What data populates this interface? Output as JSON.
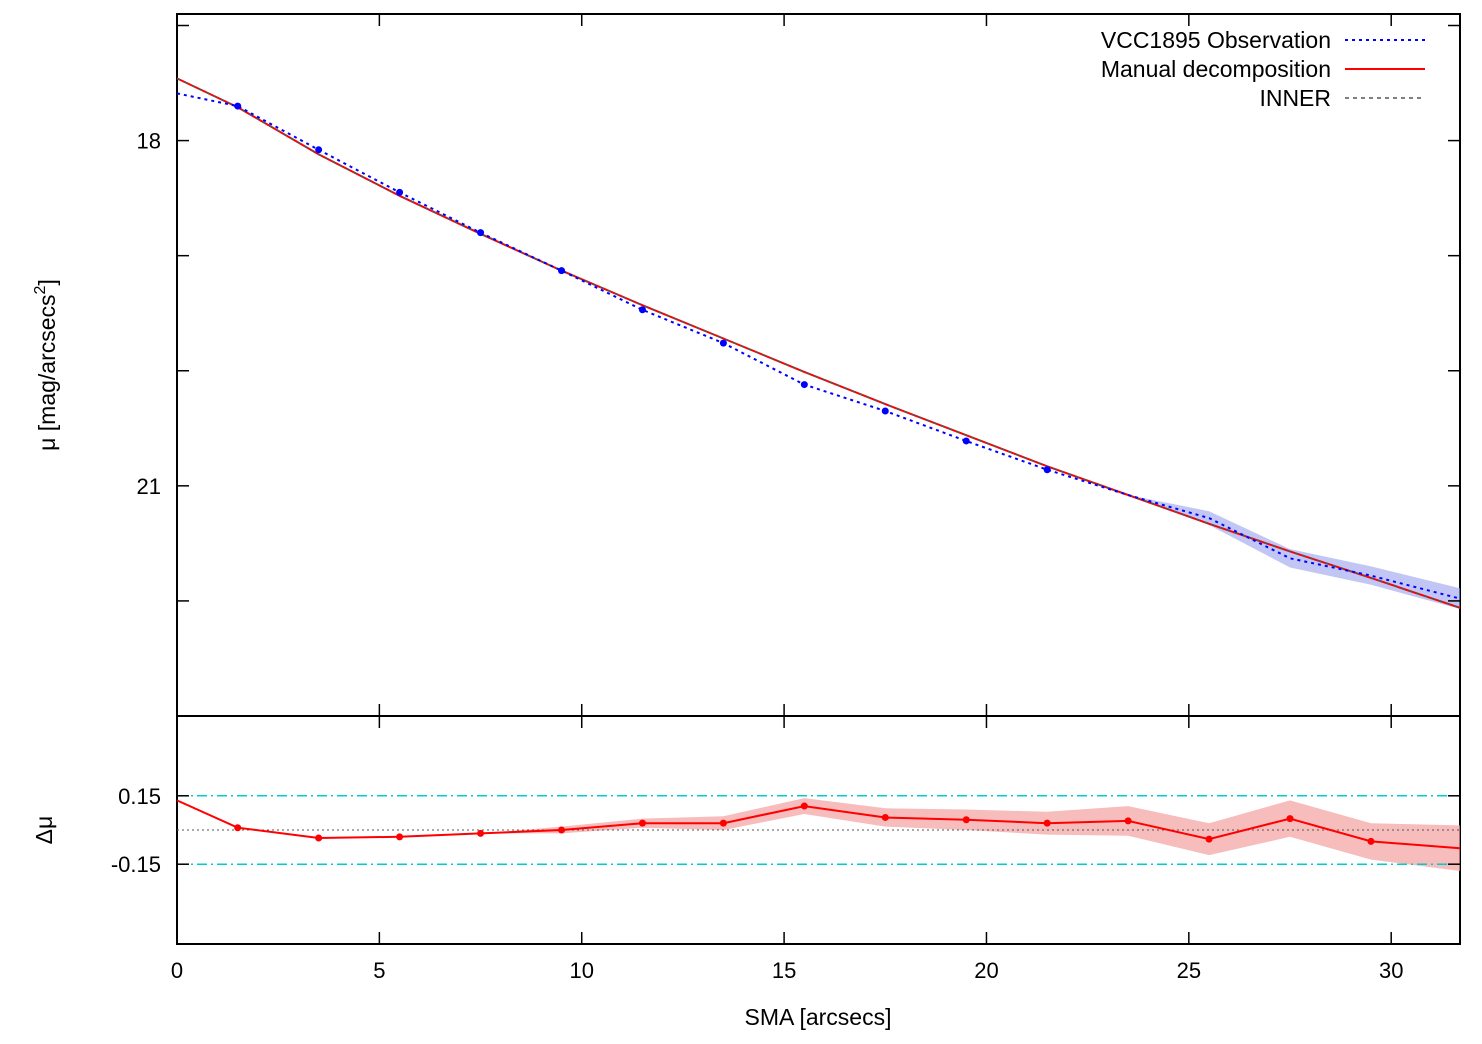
{
  "chart_data": [
    {
      "type": "line",
      "panel": "main",
      "title": "",
      "ylabel": "μ [mag/arcsecs^2]",
      "ylabel_base": "μ [mag/arcsecs",
      "ylabel_sup": "2",
      "ylabel_tail": "]",
      "xlim": [
        0,
        31.7
      ],
      "ylim": [
        23.0,
        16.9
      ],
      "y_inverted": true,
      "y_ticks": [
        17,
        18,
        19,
        20,
        21,
        22,
        23
      ],
      "y_tick_labels": [
        "18",
        "21"
      ],
      "y_tick_label_values": [
        18,
        21
      ],
      "legend": "top-right",
      "series": [
        {
          "name": "VCC1895 Observation",
          "style": "dotted",
          "color": "#0000ff",
          "x": [
            0.0,
            1.5,
            3.5,
            5.5,
            7.5,
            9.5,
            11.5,
            13.5,
            15.5,
            17.5,
            19.5,
            21.5,
            23.5,
            25.5,
            27.5,
            29.5,
            31.7
          ],
          "y": [
            17.59,
            17.7,
            18.08,
            18.45,
            18.8,
            19.13,
            19.47,
            19.76,
            20.12,
            20.35,
            20.61,
            20.86,
            21.08,
            21.28,
            21.63,
            21.78,
            21.98
          ],
          "y_err": [
            0.0,
            0.0,
            0.0,
            0.0,
            0.0,
            0.0,
            0.0,
            0.0,
            0.0,
            0.0,
            0.0,
            0.0,
            0.0,
            0.06,
            0.08,
            0.08,
            0.09
          ],
          "markers_x": [
            1.5,
            3.5,
            5.5,
            7.5,
            9.5,
            11.5,
            13.5,
            15.5,
            17.5,
            19.5,
            21.5
          ]
        },
        {
          "name": "Manual decomposition",
          "style": "solid",
          "color": "#ff0000",
          "x": [
            0.0,
            1.5,
            3.5,
            5.5,
            7.5,
            9.5,
            11.5,
            13.5,
            15.5,
            17.5,
            19.5,
            21.5,
            23.5,
            25.5,
            27.5,
            29.5,
            31.7
          ],
          "y": [
            17.46,
            17.71,
            18.12,
            18.48,
            18.81,
            19.13,
            19.43,
            19.72,
            20.01,
            20.29,
            20.56,
            20.83,
            21.08,
            21.33,
            21.57,
            21.8,
            22.06
          ]
        },
        {
          "name": "INNER",
          "style": "dashed",
          "color": "#555555",
          "x": [
            0.0,
            1.5,
            3.5,
            5.5,
            7.5,
            9.5,
            11.5,
            13.5,
            15.5,
            17.5,
            19.5,
            21.5,
            23.5,
            25.5,
            27.5,
            29.5,
            31.7
          ],
          "y": [
            17.46,
            17.71,
            18.12,
            18.48,
            18.81,
            19.13,
            19.43,
            19.72,
            20.01,
            20.29,
            20.56,
            20.83,
            21.08,
            21.33,
            21.57,
            21.8,
            22.06
          ]
        }
      ]
    },
    {
      "type": "line",
      "panel": "residual",
      "ylabel": "Δμ",
      "xlabel": "SMA [arcsecs]",
      "xlim": [
        0,
        31.7
      ],
      "x_ticks": [
        0,
        5,
        10,
        15,
        20,
        25,
        30
      ],
      "x_tick_labels": [
        "0",
        "5",
        "10",
        "15",
        "20",
        "25",
        "30"
      ],
      "ylim": [
        -0.5,
        0.5
      ],
      "y_ticks": [
        0.15,
        -0.15
      ],
      "y_tick_labels": [
        "0.15",
        "-0.15"
      ],
      "reference_lines": [
        {
          "y": 0.15,
          "style": "dash-dot",
          "color": "#00cccc"
        },
        {
          "y": -0.15,
          "style": "dash-dot",
          "color": "#00cccc"
        },
        {
          "y": 0.0,
          "style": "dotted",
          "color": "#555555"
        }
      ],
      "series": [
        {
          "name": "",
          "style": "solid",
          "color": "#ff0000",
          "band_color": "#f4a0a0",
          "x": [
            0.0,
            1.5,
            3.5,
            5.5,
            7.5,
            9.5,
            11.5,
            13.5,
            15.5,
            17.5,
            19.5,
            21.5,
            23.5,
            25.5,
            27.5,
            29.5,
            31.7
          ],
          "y": [
            0.13,
            0.01,
            -0.035,
            -0.03,
            -0.015,
            0.0,
            0.03,
            0.03,
            0.105,
            0.055,
            0.045,
            0.03,
            0.04,
            -0.04,
            0.05,
            -0.05,
            -0.08
          ],
          "band_halfwidth": [
            0.0,
            0.0,
            0.0,
            0.0,
            0.0,
            0.015,
            0.02,
            0.03,
            0.035,
            0.04,
            0.045,
            0.05,
            0.065,
            0.07,
            0.08,
            0.08,
            0.1
          ]
        }
      ]
    }
  ]
}
